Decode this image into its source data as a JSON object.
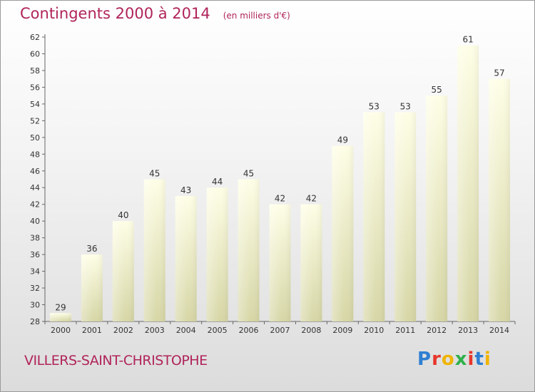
{
  "header": {
    "title": "Contingents 2000 à 2014",
    "unit": "(en milliers d'€)"
  },
  "footer": {
    "location": "VILLERS-SAINT-CHRISTOPHE",
    "brand_letters": [
      "P",
      "r",
      "o",
      "x",
      "i",
      "t",
      "i"
    ],
    "brand_colors": [
      "#2e7fd1",
      "#e8362c",
      "#f0b400",
      "#2fb04a",
      "#e8362c",
      "#2e7fd1",
      "#f0b400"
    ]
  },
  "colors": {
    "title": "#b0245a",
    "bar_light": "#fdfde0",
    "bar_dark": "#d8d8a8",
    "text": "#333333"
  },
  "chart_data": {
    "type": "bar",
    "title": "Contingents 2000 à 2014",
    "categories": [
      "2000",
      "2001",
      "2002",
      "2003",
      "2004",
      "2005",
      "2006",
      "2007",
      "2008",
      "2009",
      "2010",
      "2011",
      "2012",
      "2013",
      "2014"
    ],
    "values": [
      29,
      36,
      40,
      45,
      43,
      44,
      45,
      42,
      42,
      49,
      53,
      53,
      55,
      61,
      57
    ],
    "ylim": [
      28,
      62
    ],
    "yticks": [
      28,
      30,
      32,
      34,
      36,
      38,
      40,
      42,
      44,
      46,
      48,
      50,
      52,
      54,
      56,
      58,
      60,
      62
    ],
    "grid": false,
    "legend": "none"
  }
}
